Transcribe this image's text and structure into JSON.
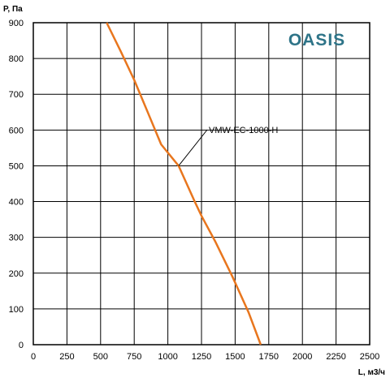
{
  "brand": {
    "text": "OASIS",
    "color": "#2e7488"
  },
  "chart_data": {
    "type": "line",
    "xlabel": "L, м3/ч",
    "ylabel": "P, Па",
    "xlim": [
      0,
      2500
    ],
    "ylim": [
      0,
      900
    ],
    "xticks": [
      "0",
      "250",
      "500",
      "750",
      "1000",
      "1250",
      "1500",
      "1750",
      "2000",
      "2250",
      "2500"
    ],
    "yticks": [
      "0",
      "100",
      "200",
      "300",
      "400",
      "500",
      "600",
      "700",
      "800",
      "900"
    ],
    "grid": true,
    "series": [
      {
        "name": "VMW-EC-1000-H",
        "color": "#e8761e",
        "x": [
          545,
          650,
          750,
          850,
          950,
          1080,
          1200,
          1250,
          1350,
          1480,
          1600,
          1690
        ],
        "y": [
          900,
          820,
          740,
          650,
          560,
          500,
          400,
          360,
          290,
          190,
          90,
          0
        ]
      }
    ]
  }
}
